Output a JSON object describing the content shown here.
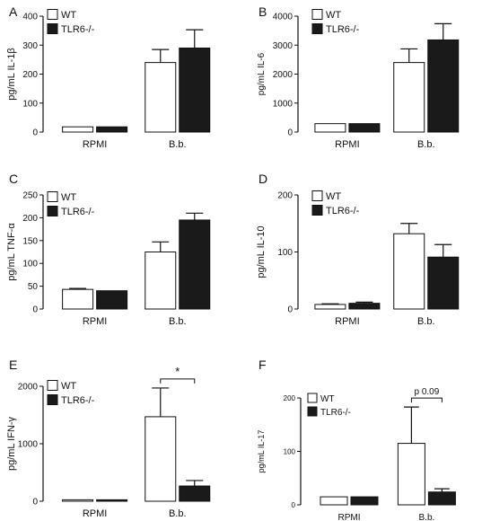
{
  "colors": {
    "wt": "#ffffff",
    "ko": "#1a1a1a",
    "axis": "#111111"
  },
  "chart_data": [
    {
      "panel": "A",
      "type": "bar",
      "categories": [
        "RPMI",
        "B.b."
      ],
      "ylabel": "pg/mL IL-1β",
      "ylim": [
        0,
        400
      ],
      "yticks": [
        0,
        100,
        200,
        300,
        400
      ],
      "legend": "top-left",
      "series": [
        {
          "name": "WT",
          "values": [
            18,
            240
          ],
          "errors": [
            0,
            45
          ]
        },
        {
          "name": "TLR6-/-",
          "values": [
            18,
            290
          ],
          "errors": [
            0,
            63
          ]
        }
      ]
    },
    {
      "panel": "B",
      "type": "bar",
      "categories": [
        "RPMI",
        "B.b."
      ],
      "ylabel": "pg/mL IL-6",
      "ylim": [
        0,
        4000
      ],
      "yticks": [
        0,
        1000,
        2000,
        3000,
        4000
      ],
      "legend": "top-left",
      "series": [
        {
          "name": "WT",
          "values": [
            290,
            2400
          ],
          "errors": [
            0,
            470
          ]
        },
        {
          "name": "TLR6-/-",
          "values": [
            290,
            3180
          ],
          "errors": [
            0,
            560
          ]
        }
      ]
    },
    {
      "panel": "C",
      "type": "bar",
      "categories": [
        "RPMI",
        "B.b."
      ],
      "ylabel": "pg/mL TNF-α",
      "ylim": [
        0,
        250
      ],
      "yticks": [
        0,
        50,
        100,
        150,
        200,
        250
      ],
      "legend": "top-left",
      "series": [
        {
          "name": "WT",
          "values": [
            43,
            125
          ],
          "errors": [
            2,
            22
          ]
        },
        {
          "name": "TLR6-/-",
          "values": [
            40,
            195
          ],
          "errors": [
            0,
            15
          ]
        }
      ]
    },
    {
      "panel": "D",
      "type": "bar",
      "categories": [
        "RPMI",
        "B.b."
      ],
      "ylabel": "pg/mL IL-10",
      "ylim": [
        0,
        200
      ],
      "yticks": [
        0,
        100,
        200
      ],
      "legend": "top-left",
      "series": [
        {
          "name": "WT",
          "values": [
            8,
            132
          ],
          "errors": [
            1,
            18
          ]
        },
        {
          "name": "TLR6-/-",
          "values": [
            10,
            91
          ],
          "errors": [
            2,
            22
          ]
        }
      ]
    },
    {
      "panel": "E",
      "type": "bar",
      "categories": [
        "RPMI",
        "B.b."
      ],
      "ylabel": "pg/mL IFN-γ",
      "ylim": [
        0,
        2000
      ],
      "yticks": [
        0,
        1000,
        2000
      ],
      "legend": "top-left",
      "annotation": "*",
      "series": [
        {
          "name": "WT",
          "values": [
            25,
            1470
          ],
          "errors": [
            0,
            500
          ]
        },
        {
          "name": "TLR6-/-",
          "values": [
            25,
            265
          ],
          "errors": [
            0,
            95
          ]
        }
      ]
    },
    {
      "panel": "F",
      "type": "bar",
      "categories": [
        "RPMI",
        "B.b."
      ],
      "ylabel": "pg/mL IL-17",
      "ylim": [
        0,
        200
      ],
      "yticks": [
        0,
        100,
        200
      ],
      "legend": "top-left",
      "annotation": "p 0.09",
      "series": [
        {
          "name": "WT",
          "values": [
            15,
            115
          ],
          "errors": [
            0,
            68
          ]
        },
        {
          "name": "TLR6-/-",
          "values": [
            15,
            24
          ],
          "errors": [
            0,
            6
          ]
        }
      ]
    }
  ]
}
